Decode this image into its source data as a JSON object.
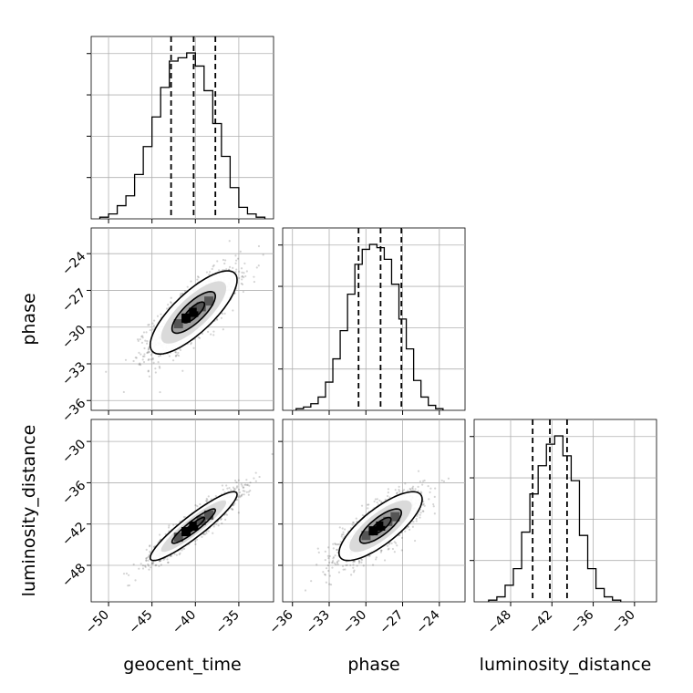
{
  "chart_data": {
    "type": "corner",
    "parameters": [
      "geocent_time",
      "phase",
      "luminosity_distance"
    ],
    "ranges": {
      "geocent_time": [
        -52,
        -31
      ],
      "phase": [
        -36.8,
        -21.9
      ],
      "luminosity_distance": [
        -53.3,
        -26.8
      ]
    },
    "ticks": {
      "geocent_time": [
        -50,
        -45,
        -40,
        -35
      ],
      "phase": [
        -36,
        -33,
        -30,
        -27,
        -24
      ],
      "luminosity_distance": [
        -48,
        -42,
        -36,
        -30
      ]
    },
    "tick_labels": {
      "geocent_time": [
        "−50",
        "−45",
        "−40",
        "−35"
      ],
      "phase": [
        "−36",
        "−33",
        "−30",
        "−27",
        "−24"
      ],
      "luminosity_distance": [
        "−48",
        "−42",
        "−36",
        "−30"
      ]
    },
    "quantiles": {
      "geocent_time": [
        -42.8,
        -40.2,
        -37.7
      ],
      "phase": [
        -30.6,
        -28.8,
        -27.1
      ],
      "luminosity_distance": [
        -44.8,
        -42.3,
        -39.8
      ]
    },
    "histograms": {
      "geocent_time": {
        "edges": [
          -51,
          -50,
          -49,
          -48,
          -47,
          -46,
          -45,
          -44,
          -43,
          -42,
          -41,
          -40,
          -39,
          -38,
          -37,
          -36,
          -35,
          -34,
          -33,
          -32
        ],
        "counts": [
          1,
          3,
          8,
          14,
          27,
          44,
          62,
          80,
          96,
          98,
          101,
          93,
          78,
          58,
          38,
          19,
          7,
          3,
          1
        ]
      },
      "phase": {
        "edges": [
          -35.7,
          -35.1,
          -34.5,
          -33.9,
          -33.3,
          -32.7,
          -32.1,
          -31.5,
          -30.9,
          -30.3,
          -29.7,
          -29.1,
          -28.5,
          -27.9,
          -27.3,
          -26.7,
          -26.1,
          -25.5,
          -24.9,
          -24.3,
          -23.7
        ],
        "counts": [
          1,
          2,
          4,
          8,
          17,
          31,
          48,
          70,
          88,
          97,
          100,
          98,
          91,
          76,
          55,
          37,
          18,
          8,
          3,
          1
        ]
      },
      "luminosity_distance": {
        "edges": [
          -51.2,
          -50.0,
          -48.8,
          -47.6,
          -46.4,
          -45.2,
          -44.0,
          -42.8,
          -41.6,
          -40.4,
          -39.2,
          -38.0,
          -36.8,
          -35.6,
          -34.4,
          -33.2,
          -32.0
        ],
        "counts": [
          1,
          3,
          10,
          20,
          42,
          65,
          82,
          95,
          100,
          88,
          73,
          40,
          20,
          8,
          3,
          1
        ]
      }
    },
    "pairs": [
      {
        "x": "geocent_time",
        "y": "phase",
        "mean": [
          -40.2,
          -28.8
        ],
        "std": [
          2.5,
          1.7
        ],
        "rho": 0.78
      },
      {
        "x": "geocent_time",
        "y": "luminosity_distance",
        "mean": [
          -40.2,
          -42.3
        ],
        "std": [
          2.5,
          2.5
        ],
        "rho": 0.92
      },
      {
        "x": "phase",
        "y": "luminosity_distance",
        "mean": [
          -28.8,
          -42.3
        ],
        "std": [
          1.7,
          2.5
        ],
        "rho": 0.78
      }
    ],
    "contour_levels_sigma": [
      0.5,
      1.0,
      1.5,
      2.0
    ],
    "grid": true
  },
  "labels": {
    "x_geocent": "geocent_time",
    "x_phase": "phase",
    "x_lum": "luminosity_distance",
    "y_phase": "phase",
    "y_lum": "luminosity_distance"
  }
}
